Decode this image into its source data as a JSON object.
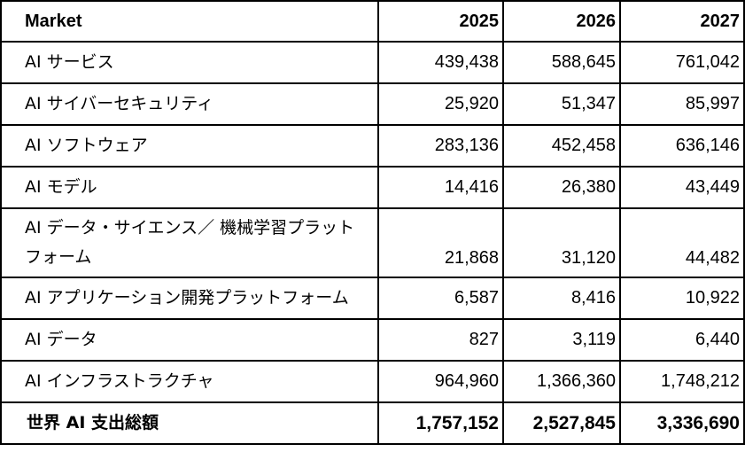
{
  "table": {
    "headers": [
      "Market",
      "2025",
      "2026",
      "2027"
    ],
    "rows": [
      {
        "market": "AI サービス",
        "values": [
          "439,438",
          "588,645",
          "761,042"
        ]
      },
      {
        "market": "AI サイバーセキュリティ",
        "values": [
          "25,920",
          "51,347",
          "85,997"
        ]
      },
      {
        "market": "AI ソフトウェア",
        "values": [
          "283,136",
          "452,458",
          "636,146"
        ]
      },
      {
        "market": "AI モデル",
        "values": [
          "14,416",
          "26,380",
          "43,449"
        ]
      },
      {
        "market": "AI データ・サイエンス／ 機械学習プラットフォーム",
        "values": [
          "21,868",
          "31,120",
          "44,482"
        ]
      },
      {
        "market": "AI アプリケーション開発プラットフォーム",
        "values": [
          "6,587",
          "8,416",
          "10,922"
        ]
      },
      {
        "market": "AI データ",
        "values": [
          "827",
          "3,119",
          "6,440"
        ]
      },
      {
        "market": "AI インフラストラクチャ",
        "values": [
          "964,960",
          "1,366,360",
          "1,748,212"
        ]
      }
    ],
    "total": {
      "market": "世界 AI 支出総額",
      "values": [
        "1,757,152",
        "2,527,845",
        "3,336,690"
      ]
    }
  }
}
